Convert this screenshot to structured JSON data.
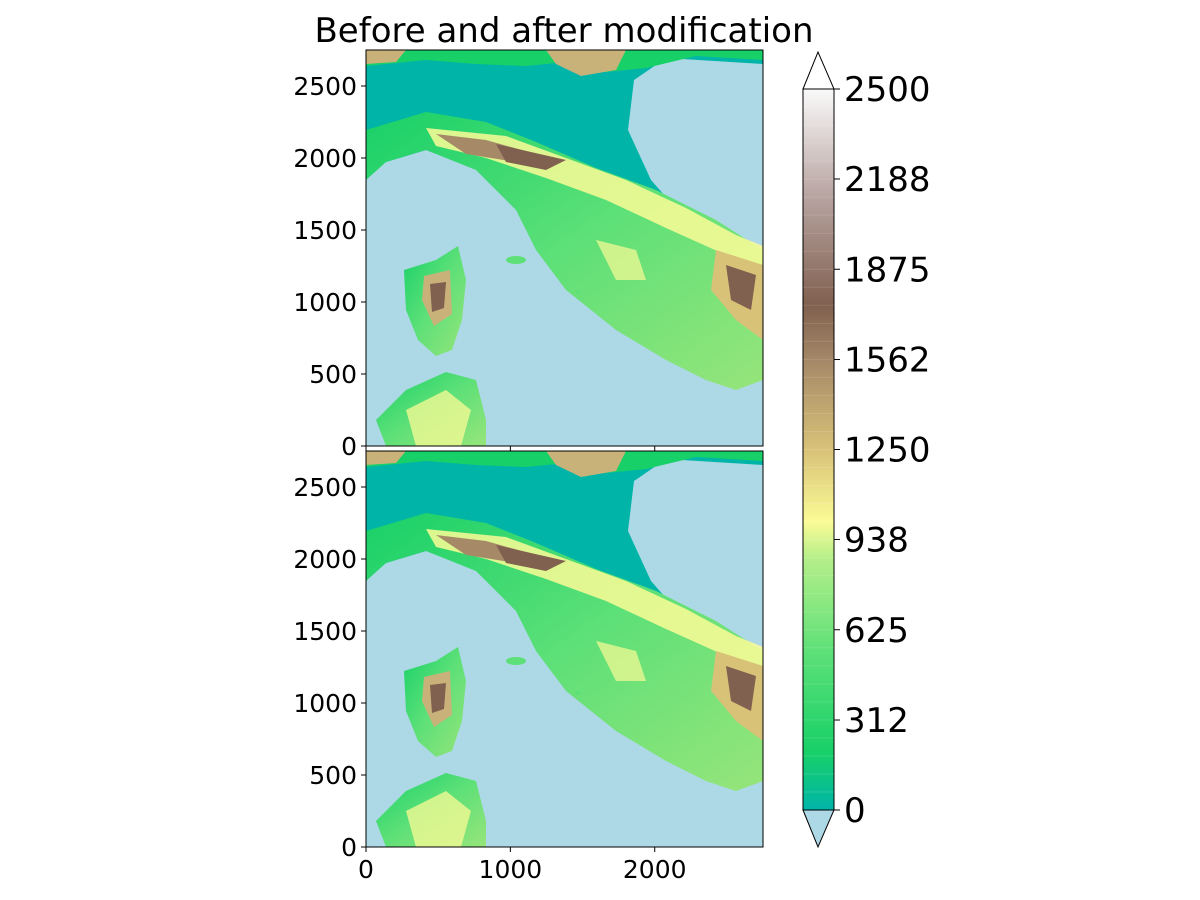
{
  "chart_data": {
    "type": "heatmap",
    "title": "Before and after modification",
    "panels": [
      {
        "name": "",
        "xlim": [
          0,
          2750
        ],
        "ylim": [
          0,
          2750
        ],
        "yticks": [
          0,
          500,
          1000,
          1500,
          2000,
          2500
        ],
        "xticks": [
          0,
          1000,
          2000
        ],
        "show_xticklabels": false
      },
      {
        "name": "",
        "xlim": [
          0,
          2750
        ],
        "ylim": [
          0,
          2750
        ],
        "yticks": [
          0,
          500,
          1000,
          1500,
          2000,
          2500
        ],
        "xticks": [
          0,
          1000,
          2000
        ],
        "show_xticklabels": true
      }
    ],
    "colorbar": {
      "min": 0,
      "max": 2500,
      "extend": "both",
      "ticks": [
        0,
        312,
        625,
        938,
        1250,
        1562,
        1875,
        2188,
        2500
      ],
      "under_color": "#add8e6",
      "levels": 40
    },
    "colors": {
      "sea": "#add8e6",
      "lowland": "#00b5a8",
      "green": "#18d068",
      "light_green": "#96e57a",
      "yellow": "#fbfb96",
      "khaki": "#c8b27a",
      "brown": "#80604f",
      "white": "#fafafa"
    }
  }
}
